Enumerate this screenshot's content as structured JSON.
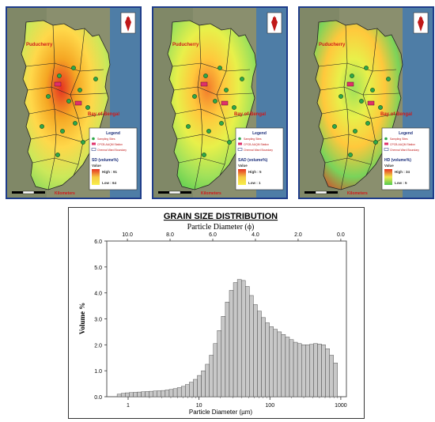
{
  "maps": [
    {
      "id": "sd",
      "places": {
        "puducherry": "Puducherry",
        "bay": "Bay of Bengal"
      },
      "legend": {
        "title": "Legend",
        "items": [
          "Sampling Sites",
          "CPCB-AAQM Station",
          "Chennai Ward Boundary"
        ],
        "variable": "SD (volume%)",
        "value_label": "Value",
        "high": "High : 91",
        "low": "Low : 64"
      },
      "scale_label": "Kilometers",
      "north": "N",
      "colors": {
        "c1": "#e53222",
        "c2": "#f5a623",
        "c3": "#ffd84a",
        "c4": "#cbe85a",
        "c5": "#7fd45a"
      }
    },
    {
      "id": "sad",
      "places": {
        "puducherry": "Puducherry",
        "bay": "Bay of Bengal"
      },
      "legend": {
        "title": "Legend",
        "items": [
          "Sampling Sites",
          "CPCB-AAQM Station",
          "Chennai Ward Boundary"
        ],
        "variable": "SAD (volume%)",
        "value_label": "Value",
        "high": "High : 5",
        "low": "Low : 1"
      },
      "scale_label": "Kilometers",
      "north": "N",
      "colors": {
        "c1": "#f27a2a",
        "c2": "#ffc83c",
        "c3": "#e8f04a",
        "c4": "#9fe15a",
        "c5": "#4fc94f"
      }
    },
    {
      "id": "hd",
      "places": {
        "puducherry": "Puducherry",
        "bay": "Bay of Bengal"
      },
      "legend": {
        "title": "Legend",
        "items": [
          "Sampling Sites",
          "CPCB-AAQM Station",
          "Chennai Ward Boundary"
        ],
        "variable": "HD (volume%)",
        "value_label": "Value",
        "high": "High : 34",
        "low": "Low : 5"
      },
      "scale_label": "Kilometers",
      "north": "N",
      "colors": {
        "c1": "#9fe15a",
        "c2": "#e8f04a",
        "c3": "#ffc83c",
        "c4": "#79d35a",
        "c5": "#e53222"
      }
    }
  ],
  "chart_data": {
    "type": "bar",
    "title": "GRAIN SIZE DISTRIBUTION",
    "top_axis_label": "Particle Diameter (ϕ)",
    "xlabel": "Particle Diameter (µm)",
    "ylabel": "Volume %",
    "x_scale": "log",
    "xlim": [
      0.5,
      1200
    ],
    "ylim": [
      0,
      6.0
    ],
    "yticks": [
      "0.0",
      "1.0",
      "2.0",
      "3.0",
      "4.0",
      "5.0",
      "6.0"
    ],
    "xticks": [
      {
        "v": 1,
        "label": "1"
      },
      {
        "v": 10,
        "label": "10"
      },
      {
        "v": 100,
        "label": "100"
      },
      {
        "v": 1000,
        "label": "1000"
      }
    ],
    "top_ticks": [
      {
        "v": 0.977,
        "label": "10.0"
      },
      {
        "v": 3.906,
        "label": "8.0"
      },
      {
        "v": 15.625,
        "label": "6.0"
      },
      {
        "v": 62.5,
        "label": "4.0"
      },
      {
        "v": 250,
        "label": "2.0"
      },
      {
        "v": 1000,
        "label": "0.0"
      }
    ],
    "bar_color": "#c8c8c8",
    "bins_from": 0.7,
    "bins_to": 900,
    "values": [
      0.1,
      0.13,
      0.15,
      0.16,
      0.17,
      0.18,
      0.19,
      0.2,
      0.21,
      0.22,
      0.23,
      0.24,
      0.26,
      0.28,
      0.31,
      0.35,
      0.4,
      0.47,
      0.56,
      0.67,
      0.82,
      1.0,
      1.25,
      1.6,
      2.05,
      2.55,
      3.1,
      3.65,
      4.1,
      4.4,
      4.52,
      4.48,
      4.25,
      3.9,
      3.55,
      3.3,
      3.05,
      2.85,
      2.7,
      2.6,
      2.5,
      2.4,
      2.3,
      2.2,
      2.1,
      2.05,
      2.0,
      2.0,
      2.02,
      2.05,
      2.03,
      2.0,
      1.85,
      1.6,
      1.3
    ]
  }
}
